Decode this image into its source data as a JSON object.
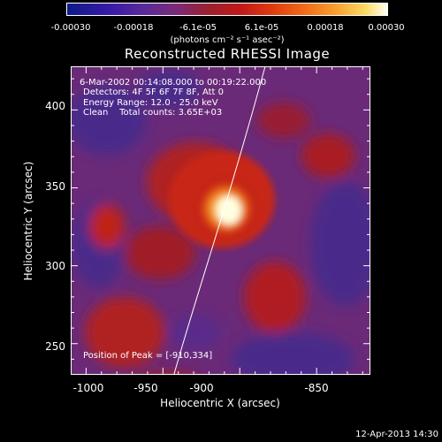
{
  "colorbar": {
    "tick_labels": [
      "-0.00030",
      "-0.00018",
      "-6.1e-05",
      "6.1e-05",
      "0.00018",
      "0.00030"
    ],
    "units": "(photons cm⁻² s⁻¹ asec⁻²)"
  },
  "title": "Reconstructed RHESSI Image",
  "annotations": {
    "time_range": "6-Mar-2002 00:14:08.000 to 00:19:22.000",
    "detectors": "Detectors: 4F 5F 6F 7F 8F, Att 0",
    "energy_range": "Energy Range: 12.0 - 25.0 keV",
    "clean_counts": "Clean    Total counts: 3.65E+03",
    "peak_position": "Position of Peak = [-910,334]"
  },
  "x_axis": {
    "title": "Heliocentric X (arcsec)",
    "tick_labels": [
      "-1000",
      "-950",
      "-900",
      "-850"
    ],
    "range": [
      -1010,
      -815
    ]
  },
  "y_axis": {
    "title": "Heliocentric Y (arcsec)",
    "tick_labels": [
      "250",
      "300",
      "350",
      "400"
    ],
    "range": [
      230,
      428
    ]
  },
  "chart_data": {
    "type": "heatmap",
    "title": "Reconstructed RHESSI Image",
    "xlabel": "Heliocentric X (arcsec)",
    "ylabel": "Heliocentric Y (arcsec)",
    "xlim": [
      -1010,
      -815
    ],
    "ylim": [
      230,
      428
    ],
    "colorbar_range": [
      -0.0003,
      0.0003
    ],
    "peak": {
      "x": -910,
      "y": 334
    },
    "grid": false
  },
  "timestamp": "12-Apr-2013 14:30",
  "colors": {
    "background": "#000000",
    "foreground": "#ffffff",
    "low": "#7a2a7a",
    "mid": "#c01818",
    "high": "#fffff0"
  }
}
